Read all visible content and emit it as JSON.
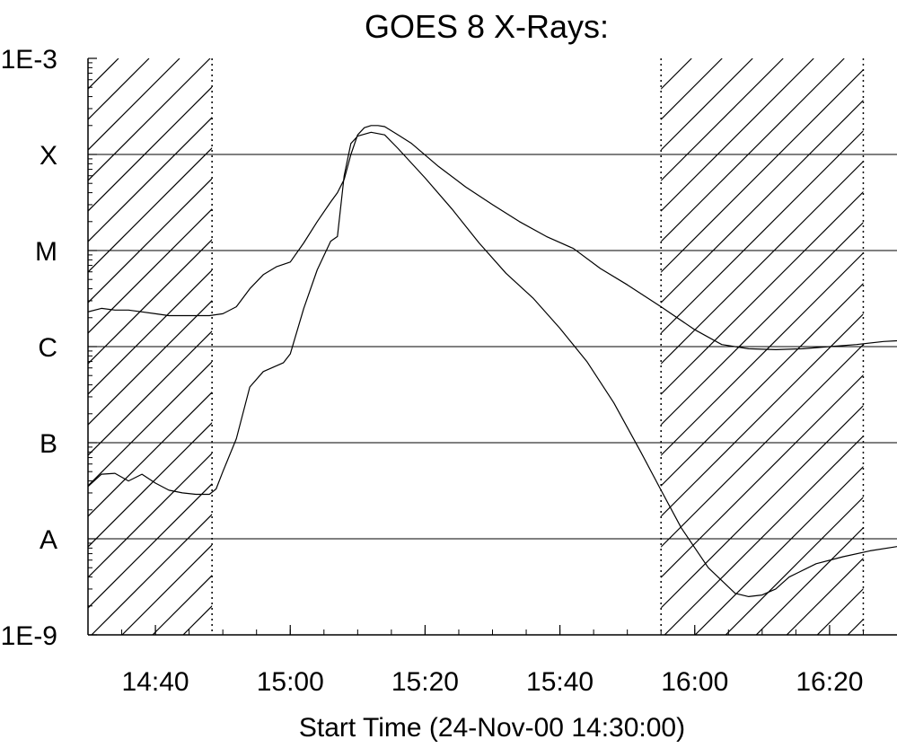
{
  "chart_data": {
    "type": "line",
    "title": "GOES 8 X-Rays:",
    "xlabel": "Start Time (24-Nov-00 14:30:00)",
    "ylabel": "",
    "x_unit": "minutes after 14:30:00",
    "xlim": [
      0,
      120
    ],
    "ylim": [
      1e-09,
      0.001
    ],
    "yscale": "log",
    "grid": "horizontal lines at each flare class level",
    "y_ticks": [
      {
        "value": 0.001,
        "label": "1E-3"
      },
      {
        "value": 0.0001,
        "label": "X"
      },
      {
        "value": 1e-05,
        "label": "M"
      },
      {
        "value": 1e-06,
        "label": "C"
      },
      {
        "value": 1e-07,
        "label": "B"
      },
      {
        "value": 1e-08,
        "label": "A"
      },
      {
        "value": 1e-09,
        "label": "1E-9"
      }
    ],
    "x_ticks": [
      {
        "value": 10,
        "label": "14:40"
      },
      {
        "value": 30,
        "label": "15:00"
      },
      {
        "value": 50,
        "label": "15:20"
      },
      {
        "value": 70,
        "label": "15:40"
      },
      {
        "value": 90,
        "label": "16:00"
      },
      {
        "value": 110,
        "label": "16:20"
      }
    ],
    "shaded_intervals": [
      [
        0,
        18.4
      ],
      [
        85.0,
        115.0
      ]
    ],
    "series": [
      {
        "points": [
          [
            0,
            2.3e-06
          ],
          [
            2,
            2.5e-06
          ],
          [
            4,
            2.4e-06
          ],
          [
            6,
            2.4e-06
          ],
          [
            8,
            2.3e-06
          ],
          [
            10,
            2.2e-06
          ],
          [
            12,
            2.1e-06
          ],
          [
            14,
            2.1e-06
          ],
          [
            16,
            2.1e-06
          ],
          [
            18,
            2.1e-06
          ],
          [
            20,
            2.2e-06
          ],
          [
            22,
            2.6e-06
          ],
          [
            24,
            4e-06
          ],
          [
            26,
            5.6e-06
          ],
          [
            28,
            6.8e-06
          ],
          [
            30,
            7.6e-06
          ],
          [
            32,
            1.2e-05
          ],
          [
            34,
            2e-05
          ],
          [
            36,
            3.2e-05
          ],
          [
            37,
            4e-05
          ],
          [
            38,
            5.5e-05
          ],
          [
            39,
            0.0001
          ],
          [
            40,
            0.00016
          ],
          [
            41,
            0.00019
          ],
          [
            42,
            0.0002
          ],
          [
            43,
            0.0002
          ],
          [
            44,
            0.000195
          ],
          [
            46,
            0.00016
          ],
          [
            48,
            0.00013
          ],
          [
            52,
            7.5e-05
          ],
          [
            56,
            4.6e-05
          ],
          [
            60,
            3e-05
          ],
          [
            64,
            2e-05
          ],
          [
            68,
            1.4e-05
          ],
          [
            72,
            1.05e-05
          ],
          [
            76,
            6.5e-06
          ],
          [
            80,
            4.4e-06
          ],
          [
            85,
            2.6e-06
          ],
          [
            90,
            1.5e-06
          ],
          [
            94,
            1.05e-06
          ],
          [
            98,
            9.5e-07
          ],
          [
            102,
            9.3e-07
          ],
          [
            106,
            9.5e-07
          ],
          [
            110,
            1e-06
          ],
          [
            114,
            1.05e-06
          ],
          [
            118,
            1.13e-06
          ],
          [
            120,
            1.15e-06
          ]
        ]
      },
      {
        "points": [
          [
            0,
            3.5e-08
          ],
          [
            2,
            4.7e-08
          ],
          [
            4,
            4.8e-08
          ],
          [
            6,
            4e-08
          ],
          [
            8,
            4.7e-08
          ],
          [
            10,
            3.8e-08
          ],
          [
            12,
            3.2e-08
          ],
          [
            14,
            3e-08
          ],
          [
            16,
            2.9e-08
          ],
          [
            18,
            2.9e-08
          ],
          [
            19,
            3.3e-08
          ],
          [
            20,
            5e-08
          ],
          [
            22,
            1.1e-07
          ],
          [
            24,
            3.8e-07
          ],
          [
            26,
            5.5e-07
          ],
          [
            29,
            6.8e-07
          ],
          [
            30,
            8.4e-07
          ],
          [
            32,
            2.5e-06
          ],
          [
            34,
            6.3e-06
          ],
          [
            36,
            1.25e-05
          ],
          [
            37,
            1.4e-05
          ],
          [
            38,
            6e-05
          ],
          [
            39,
            0.00013
          ],
          [
            40,
            0.000155
          ],
          [
            42,
            0.00017
          ],
          [
            44,
            0.00016
          ],
          [
            46,
            0.000115
          ],
          [
            50,
            5.7e-05
          ],
          [
            54,
            2.7e-05
          ],
          [
            58,
            1.2e-05
          ],
          [
            62,
            5.8e-06
          ],
          [
            66,
            3.2e-06
          ],
          [
            70,
            1.55e-06
          ],
          [
            74,
            7e-07
          ],
          [
            78,
            2.6e-07
          ],
          [
            82,
            8e-08
          ],
          [
            85,
            3.2e-08
          ],
          [
            88,
            1.3e-08
          ],
          [
            92,
            5e-09
          ],
          [
            96,
            2.7e-09
          ],
          [
            98,
            2.5e-09
          ],
          [
            100,
            2.6e-09
          ],
          [
            102,
            3e-09
          ],
          [
            104,
            4e-09
          ],
          [
            108,
            5.5e-09
          ],
          [
            112,
            6.5e-09
          ],
          [
            116,
            7.5e-09
          ],
          [
            120,
            8.3e-09
          ]
        ]
      }
    ]
  }
}
